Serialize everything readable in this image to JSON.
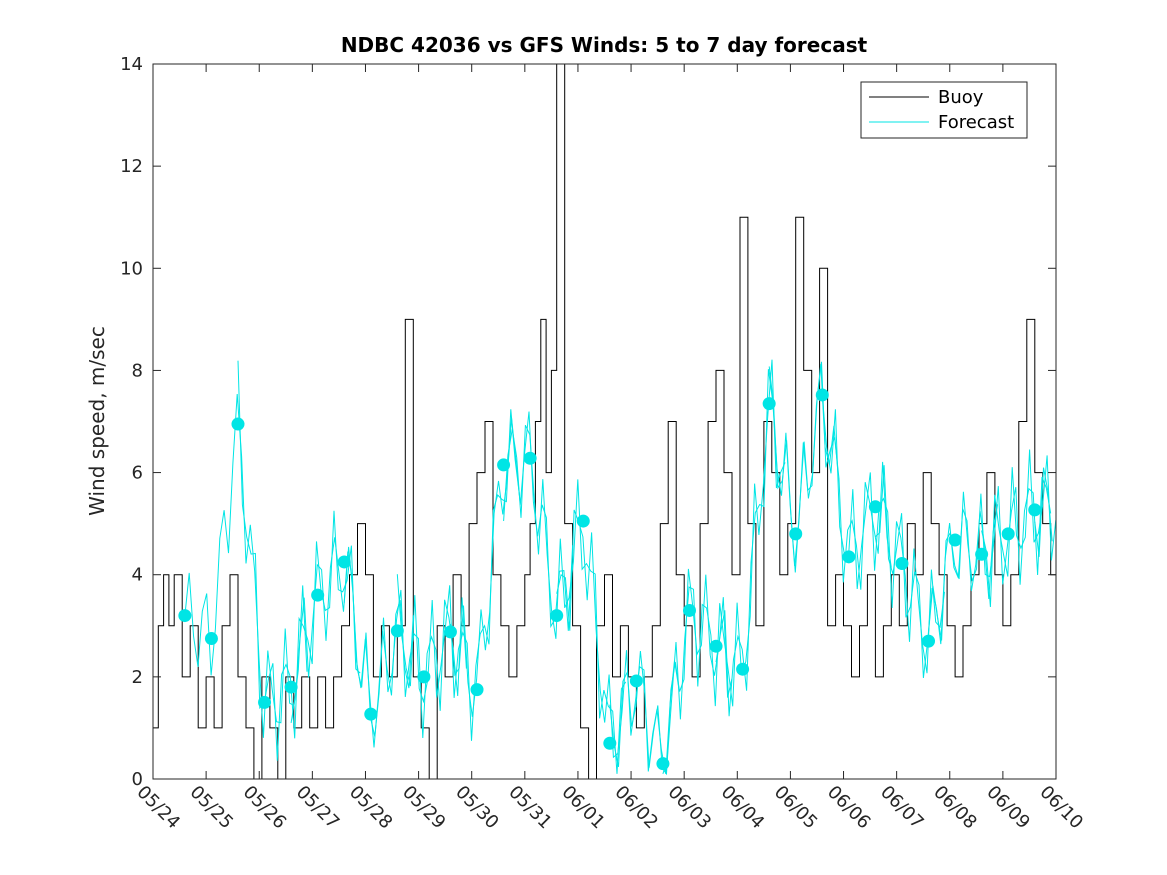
{
  "chart_data": {
    "type": "line",
    "title": "NDBC 42036 vs GFS Winds: 5 to 7 day forecast",
    "xlabel": "",
    "ylabel": "Wind speed, m/sec",
    "x_ticks": [
      "05/24",
      "05/25",
      "05/26",
      "05/27",
      "05/28",
      "05/29",
      "05/30",
      "05/31",
      "06/01",
      "06/02",
      "06/03",
      "06/04",
      "06/05",
      "06/06",
      "06/07",
      "06/08",
      "06/09",
      "06/10"
    ],
    "xlim": [
      "05/24",
      "06/10"
    ],
    "ylim": [
      0,
      14
    ],
    "y_ticks": [
      0,
      2,
      4,
      6,
      8,
      10,
      12,
      14
    ],
    "grid": false,
    "legend_position": "top-right",
    "colors": {
      "buoy": "#000000",
      "forecast": "#00e5e5"
    },
    "legend": [
      "Buoy",
      "Forecast"
    ],
    "series": [
      {
        "name": "Buoy",
        "x_days_since_05_24": [
          0.0,
          0.1,
          0.2,
          0.3,
          0.4,
          0.55,
          0.7,
          0.85,
          1.0,
          1.15,
          1.3,
          1.45,
          1.6,
          1.75,
          1.9,
          2.05,
          2.2,
          2.35,
          2.5,
          2.65,
          2.8,
          2.95,
          3.1,
          3.25,
          3.4,
          3.55,
          3.7,
          3.85,
          4.0,
          4.15,
          4.3,
          4.45,
          4.6,
          4.75,
          4.9,
          5.05,
          5.2,
          5.35,
          5.5,
          5.65,
          5.8,
          5.95,
          6.1,
          6.25,
          6.4,
          6.55,
          6.7,
          6.85,
          7.0,
          7.1,
          7.2,
          7.3,
          7.4,
          7.5,
          7.6,
          7.75,
          7.9,
          8.05,
          8.2,
          8.35,
          8.5,
          8.65,
          8.8,
          8.95,
          9.1,
          9.25,
          9.4,
          9.55,
          9.7,
          9.85,
          10.0,
          10.15,
          10.3,
          10.45,
          10.6,
          10.75,
          10.9,
          11.05,
          11.2,
          11.35,
          11.5,
          11.65,
          11.8,
          11.95,
          12.1,
          12.25,
          12.4,
          12.55,
          12.7,
          12.85,
          13.0,
          13.15,
          13.3,
          13.45,
          13.6,
          13.75,
          13.9,
          14.05,
          14.2,
          14.35,
          14.5,
          14.65,
          14.8,
          14.95,
          15.1,
          15.25,
          15.4,
          15.55,
          15.7,
          15.85,
          16.0,
          16.15,
          16.3,
          16.45,
          16.6,
          16.75,
          16.9,
          17.0
        ],
        "y": [
          1,
          3,
          4,
          3,
          4,
          2,
          3,
          1,
          2,
          1,
          3,
          4,
          2,
          1,
          0,
          2,
          1,
          0,
          2,
          1,
          2,
          1,
          2,
          1,
          2,
          3,
          4,
          5,
          4,
          2,
          3,
          2,
          3,
          9,
          2,
          1,
          0,
          3,
          2,
          4,
          3,
          5,
          6,
          7,
          4,
          3,
          2,
          3,
          4,
          5,
          7,
          9,
          6,
          8,
          14,
          5,
          3,
          1,
          0,
          3,
          4,
          2,
          3,
          2,
          1,
          2,
          3,
          5,
          7,
          4,
          3,
          2,
          5,
          7,
          8,
          6,
          4,
          11,
          5,
          3,
          7,
          6,
          4,
          5,
          11,
          8,
          6,
          10,
          3,
          4,
          3,
          2,
          3,
          4,
          2,
          3,
          4,
          3,
          5,
          4,
          6,
          5,
          4,
          3,
          2,
          3,
          4,
          5,
          6,
          4,
          3,
          4,
          7,
          9,
          6,
          5,
          4,
          4
        ]
      },
      {
        "name": "Forecast",
        "x_days_since_05_24": [
          0.6,
          1.1,
          1.6,
          2.1,
          2.6,
          3.1,
          3.6,
          4.1,
          4.6,
          5.1,
          5.6,
          6.1,
          6.6,
          7.1,
          7.6,
          8.1,
          8.6,
          9.1,
          9.6,
          10.1,
          10.6,
          11.1,
          11.6,
          12.1,
          12.6,
          13.1,
          13.6,
          14.1,
          14.6,
          15.1,
          15.6,
          16.1,
          16.6
        ],
        "y": [
          3.2,
          2.75,
          6.95,
          1.5,
          1.8,
          3.6,
          4.25,
          1.27,
          2.9,
          2.0,
          2.88,
          1.75,
          6.15,
          6.28,
          3.2,
          5.05,
          0.7,
          1.92,
          0.3,
          3.3,
          2.6,
          2.15,
          7.35,
          4.8,
          7.52,
          4.35,
          5.33,
          4.22,
          2.7,
          4.68,
          4.4,
          4.8,
          5.27
        ]
      }
    ]
  }
}
